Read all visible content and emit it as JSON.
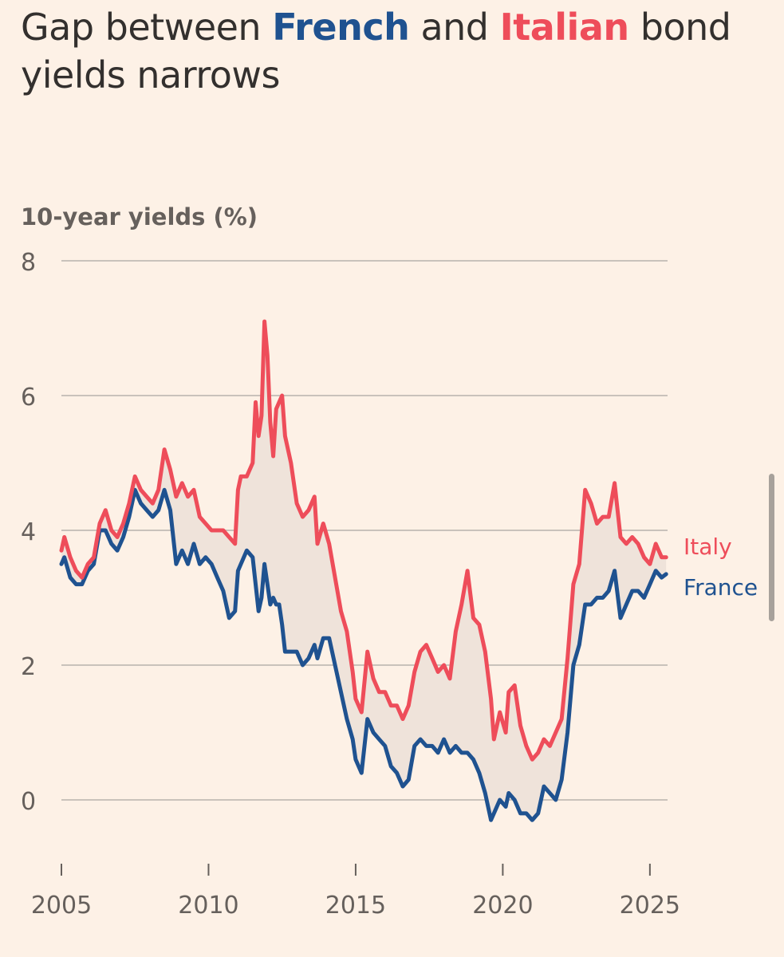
{
  "title": {
    "part1": "Gap between ",
    "french": "French",
    "part2": " and ",
    "italian": "Italian",
    "part3": " bond yields narrows"
  },
  "colors": {
    "background": "#fdf1e6",
    "france": "#1f5290",
    "italy": "#ee4d5a",
    "gap_fill": "#efe3da",
    "gridline": "#c9c2bb",
    "text": "#33302e",
    "axis_text": "#66605c"
  },
  "chart_data": {
    "type": "line",
    "ylabel": "10-year yields (%)",
    "ylim": [
      -0.9,
      8
    ],
    "y_ticks": [
      "8",
      "6",
      "4",
      "2",
      "0"
    ],
    "y_tick_values": [
      8,
      6,
      4,
      2,
      0
    ],
    "xlim": [
      2005,
      2025.6
    ],
    "x_ticks": [
      "2005",
      "2010",
      "2015",
      "2020",
      "2025"
    ],
    "x_tick_values": [
      2005,
      2010,
      2015,
      2020,
      2025
    ],
    "grid": true,
    "legend": "inline-right",
    "gap_shaded": true,
    "series": [
      {
        "name": "Italy",
        "color": "#ee4d5a",
        "points": [
          [
            2005.0,
            3.7
          ],
          [
            2005.1,
            3.9
          ],
          [
            2005.3,
            3.6
          ],
          [
            2005.5,
            3.4
          ],
          [
            2005.7,
            3.3
          ],
          [
            2005.9,
            3.5
          ],
          [
            2006.1,
            3.6
          ],
          [
            2006.3,
            4.1
          ],
          [
            2006.5,
            4.3
          ],
          [
            2006.7,
            4.0
          ],
          [
            2006.9,
            3.9
          ],
          [
            2007.1,
            4.1
          ],
          [
            2007.3,
            4.4
          ],
          [
            2007.5,
            4.8
          ],
          [
            2007.7,
            4.6
          ],
          [
            2007.9,
            4.5
          ],
          [
            2008.1,
            4.4
          ],
          [
            2008.3,
            4.6
          ],
          [
            2008.5,
            5.2
          ],
          [
            2008.7,
            4.9
          ],
          [
            2008.9,
            4.5
          ],
          [
            2009.1,
            4.7
          ],
          [
            2009.3,
            4.5
          ],
          [
            2009.5,
            4.6
          ],
          [
            2009.7,
            4.2
          ],
          [
            2009.9,
            4.1
          ],
          [
            2010.1,
            4.0
          ],
          [
            2010.3,
            4.0
          ],
          [
            2010.5,
            4.0
          ],
          [
            2010.7,
            3.9
          ],
          [
            2010.9,
            3.8
          ],
          [
            2011.0,
            4.6
          ],
          [
            2011.1,
            4.8
          ],
          [
            2011.3,
            4.8
          ],
          [
            2011.5,
            5.0
          ],
          [
            2011.6,
            5.9
          ],
          [
            2011.7,
            5.4
          ],
          [
            2011.8,
            5.7
          ],
          [
            2011.9,
            7.1
          ],
          [
            2012.0,
            6.6
          ],
          [
            2012.1,
            5.6
          ],
          [
            2012.2,
            5.1
          ],
          [
            2012.3,
            5.8
          ],
          [
            2012.4,
            5.9
          ],
          [
            2012.5,
            6.0
          ],
          [
            2012.6,
            5.4
          ],
          [
            2012.8,
            5.0
          ],
          [
            2013.0,
            4.4
          ],
          [
            2013.2,
            4.2
          ],
          [
            2013.4,
            4.3
          ],
          [
            2013.6,
            4.5
          ],
          [
            2013.7,
            3.8
          ],
          [
            2013.9,
            4.1
          ],
          [
            2014.1,
            3.8
          ],
          [
            2014.3,
            3.3
          ],
          [
            2014.5,
            2.8
          ],
          [
            2014.7,
            2.5
          ],
          [
            2014.9,
            1.9
          ],
          [
            2015.0,
            1.5
          ],
          [
            2015.2,
            1.3
          ],
          [
            2015.4,
            2.2
          ],
          [
            2015.6,
            1.8
          ],
          [
            2015.8,
            1.6
          ],
          [
            2016.0,
            1.6
          ],
          [
            2016.2,
            1.4
          ],
          [
            2016.4,
            1.4
          ],
          [
            2016.6,
            1.2
          ],
          [
            2016.8,
            1.4
          ],
          [
            2017.0,
            1.9
          ],
          [
            2017.2,
            2.2
          ],
          [
            2017.4,
            2.3
          ],
          [
            2017.6,
            2.1
          ],
          [
            2017.8,
            1.9
          ],
          [
            2018.0,
            2.0
          ],
          [
            2018.2,
            1.8
          ],
          [
            2018.4,
            2.5
          ],
          [
            2018.6,
            2.9
          ],
          [
            2018.8,
            3.4
          ],
          [
            2019.0,
            2.7
          ],
          [
            2019.2,
            2.6
          ],
          [
            2019.4,
            2.2
          ],
          [
            2019.6,
            1.5
          ],
          [
            2019.7,
            0.9
          ],
          [
            2019.9,
            1.3
          ],
          [
            2020.1,
            1.0
          ],
          [
            2020.2,
            1.6
          ],
          [
            2020.4,
            1.7
          ],
          [
            2020.6,
            1.1
          ],
          [
            2020.8,
            0.8
          ],
          [
            2021.0,
            0.6
          ],
          [
            2021.2,
            0.7
          ],
          [
            2021.4,
            0.9
          ],
          [
            2021.6,
            0.8
          ],
          [
            2021.8,
            1.0
          ],
          [
            2022.0,
            1.2
          ],
          [
            2022.2,
            2.1
          ],
          [
            2022.4,
            3.2
          ],
          [
            2022.6,
            3.5
          ],
          [
            2022.8,
            4.6
          ],
          [
            2023.0,
            4.4
          ],
          [
            2023.2,
            4.1
          ],
          [
            2023.4,
            4.2
          ],
          [
            2023.6,
            4.2
          ],
          [
            2023.8,
            4.7
          ],
          [
            2024.0,
            3.9
          ],
          [
            2024.2,
            3.8
          ],
          [
            2024.4,
            3.9
          ],
          [
            2024.6,
            3.8
          ],
          [
            2024.8,
            3.6
          ],
          [
            2025.0,
            3.5
          ],
          [
            2025.2,
            3.8
          ],
          [
            2025.4,
            3.6
          ],
          [
            2025.55,
            3.6
          ]
        ]
      },
      {
        "name": "France",
        "color": "#1f5290",
        "points": [
          [
            2005.0,
            3.5
          ],
          [
            2005.1,
            3.6
          ],
          [
            2005.3,
            3.3
          ],
          [
            2005.5,
            3.2
          ],
          [
            2005.7,
            3.2
          ],
          [
            2005.9,
            3.4
          ],
          [
            2006.1,
            3.5
          ],
          [
            2006.3,
            4.0
          ],
          [
            2006.5,
            4.0
          ],
          [
            2006.7,
            3.8
          ],
          [
            2006.9,
            3.7
          ],
          [
            2007.1,
            3.9
          ],
          [
            2007.3,
            4.2
          ],
          [
            2007.5,
            4.6
          ],
          [
            2007.7,
            4.4
          ],
          [
            2007.9,
            4.3
          ],
          [
            2008.1,
            4.2
          ],
          [
            2008.3,
            4.3
          ],
          [
            2008.5,
            4.6
          ],
          [
            2008.7,
            4.3
          ],
          [
            2008.9,
            3.5
          ],
          [
            2009.1,
            3.7
          ],
          [
            2009.3,
            3.5
          ],
          [
            2009.5,
            3.8
          ],
          [
            2009.7,
            3.5
          ],
          [
            2009.9,
            3.6
          ],
          [
            2010.1,
            3.5
          ],
          [
            2010.3,
            3.3
          ],
          [
            2010.5,
            3.1
          ],
          [
            2010.7,
            2.7
          ],
          [
            2010.9,
            2.8
          ],
          [
            2011.0,
            3.4
          ],
          [
            2011.1,
            3.5
          ],
          [
            2011.3,
            3.7
          ],
          [
            2011.5,
            3.6
          ],
          [
            2011.6,
            3.2
          ],
          [
            2011.7,
            2.8
          ],
          [
            2011.8,
            3.0
          ],
          [
            2011.9,
            3.5
          ],
          [
            2012.0,
            3.2
          ],
          [
            2012.1,
            2.9
          ],
          [
            2012.2,
            3.0
          ],
          [
            2012.3,
            2.9
          ],
          [
            2012.4,
            2.9
          ],
          [
            2012.5,
            2.6
          ],
          [
            2012.6,
            2.2
          ],
          [
            2012.8,
            2.2
          ],
          [
            2013.0,
            2.2
          ],
          [
            2013.2,
            2.0
          ],
          [
            2013.4,
            2.1
          ],
          [
            2013.6,
            2.3
          ],
          [
            2013.7,
            2.1
          ],
          [
            2013.9,
            2.4
          ],
          [
            2014.1,
            2.4
          ],
          [
            2014.3,
            2.0
          ],
          [
            2014.5,
            1.6
          ],
          [
            2014.7,
            1.2
          ],
          [
            2014.9,
            0.9
          ],
          [
            2015.0,
            0.6
          ],
          [
            2015.2,
            0.4
          ],
          [
            2015.4,
            1.2
          ],
          [
            2015.6,
            1.0
          ],
          [
            2015.8,
            0.9
          ],
          [
            2016.0,
            0.8
          ],
          [
            2016.2,
            0.5
          ],
          [
            2016.4,
            0.4
          ],
          [
            2016.6,
            0.2
          ],
          [
            2016.8,
            0.3
          ],
          [
            2017.0,
            0.8
          ],
          [
            2017.2,
            0.9
          ],
          [
            2017.4,
            0.8
          ],
          [
            2017.6,
            0.8
          ],
          [
            2017.8,
            0.7
          ],
          [
            2018.0,
            0.9
          ],
          [
            2018.2,
            0.7
          ],
          [
            2018.4,
            0.8
          ],
          [
            2018.6,
            0.7
          ],
          [
            2018.8,
            0.7
          ],
          [
            2019.0,
            0.6
          ],
          [
            2019.2,
            0.4
          ],
          [
            2019.4,
            0.1
          ],
          [
            2019.6,
            -0.3
          ],
          [
            2019.7,
            -0.2
          ],
          [
            2019.9,
            0.0
          ],
          [
            2020.1,
            -0.1
          ],
          [
            2020.2,
            0.1
          ],
          [
            2020.4,
            0.0
          ],
          [
            2020.6,
            -0.2
          ],
          [
            2020.8,
            -0.2
          ],
          [
            2021.0,
            -0.3
          ],
          [
            2021.2,
            -0.2
          ],
          [
            2021.4,
            0.2
          ],
          [
            2021.6,
            0.1
          ],
          [
            2021.8,
            0.0
          ],
          [
            2022.0,
            0.3
          ],
          [
            2022.2,
            1.0
          ],
          [
            2022.4,
            2.0
          ],
          [
            2022.6,
            2.3
          ],
          [
            2022.8,
            2.9
          ],
          [
            2023.0,
            2.9
          ],
          [
            2023.2,
            3.0
          ],
          [
            2023.4,
            3.0
          ],
          [
            2023.6,
            3.1
          ],
          [
            2023.8,
            3.4
          ],
          [
            2024.0,
            2.7
          ],
          [
            2024.2,
            2.9
          ],
          [
            2024.4,
            3.1
          ],
          [
            2024.6,
            3.1
          ],
          [
            2024.8,
            3.0
          ],
          [
            2025.0,
            3.2
          ],
          [
            2025.2,
            3.4
          ],
          [
            2025.4,
            3.3
          ],
          [
            2025.55,
            3.35
          ]
        ]
      }
    ]
  }
}
